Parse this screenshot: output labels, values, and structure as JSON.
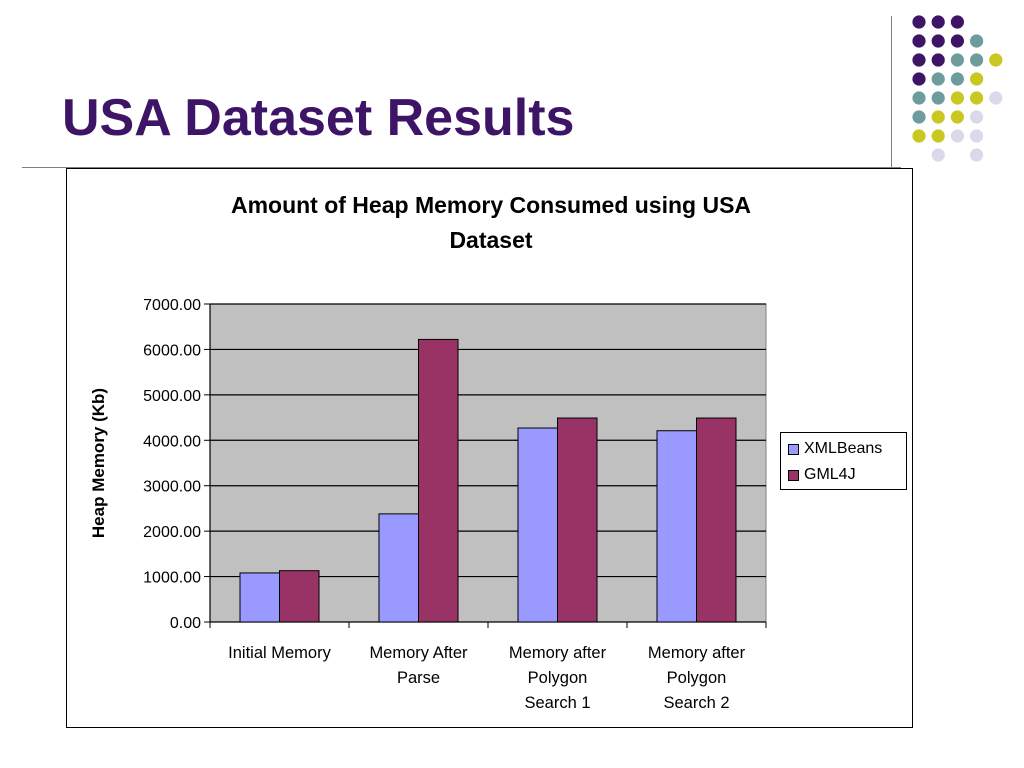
{
  "slide": {
    "title": "USA Dataset Results"
  },
  "decoration": {
    "dot_colors": [
      "#3d1466",
      "#6e9c9c",
      "#c8c820",
      "#d9d9ea"
    ]
  },
  "chart_data": {
    "type": "bar",
    "title_lines": [
      "Amount of Heap Memory Consumed using USA",
      "Dataset"
    ],
    "ylabel": "Heap Memory (Kb)",
    "xlabel": "",
    "ylim": [
      0,
      7000
    ],
    "ytick_values": [
      0,
      1000,
      2000,
      3000,
      4000,
      5000,
      6000,
      7000
    ],
    "ytick_labels": [
      "0.00",
      "1000.00",
      "2000.00",
      "3000.00",
      "4000.00",
      "5000.00",
      "6000.00",
      "7000.00"
    ],
    "categories": [
      [
        "Initial Memory"
      ],
      [
        "Memory After",
        "Parse"
      ],
      [
        "Memory after",
        "Polygon",
        "Search 1"
      ],
      [
        "Memory after",
        "Polygon",
        "Search 2"
      ]
    ],
    "series": [
      {
        "name": "XMLBeans",
        "color": "#9999ff",
        "values": [
          1080,
          2380,
          4270,
          4210
        ]
      },
      {
        "name": "GML4J",
        "color": "#993366",
        "values": [
          1130,
          6220,
          4490,
          4490
        ]
      }
    ],
    "grid": true,
    "plot_background": "#c0c0c0",
    "legend_position": "right"
  }
}
